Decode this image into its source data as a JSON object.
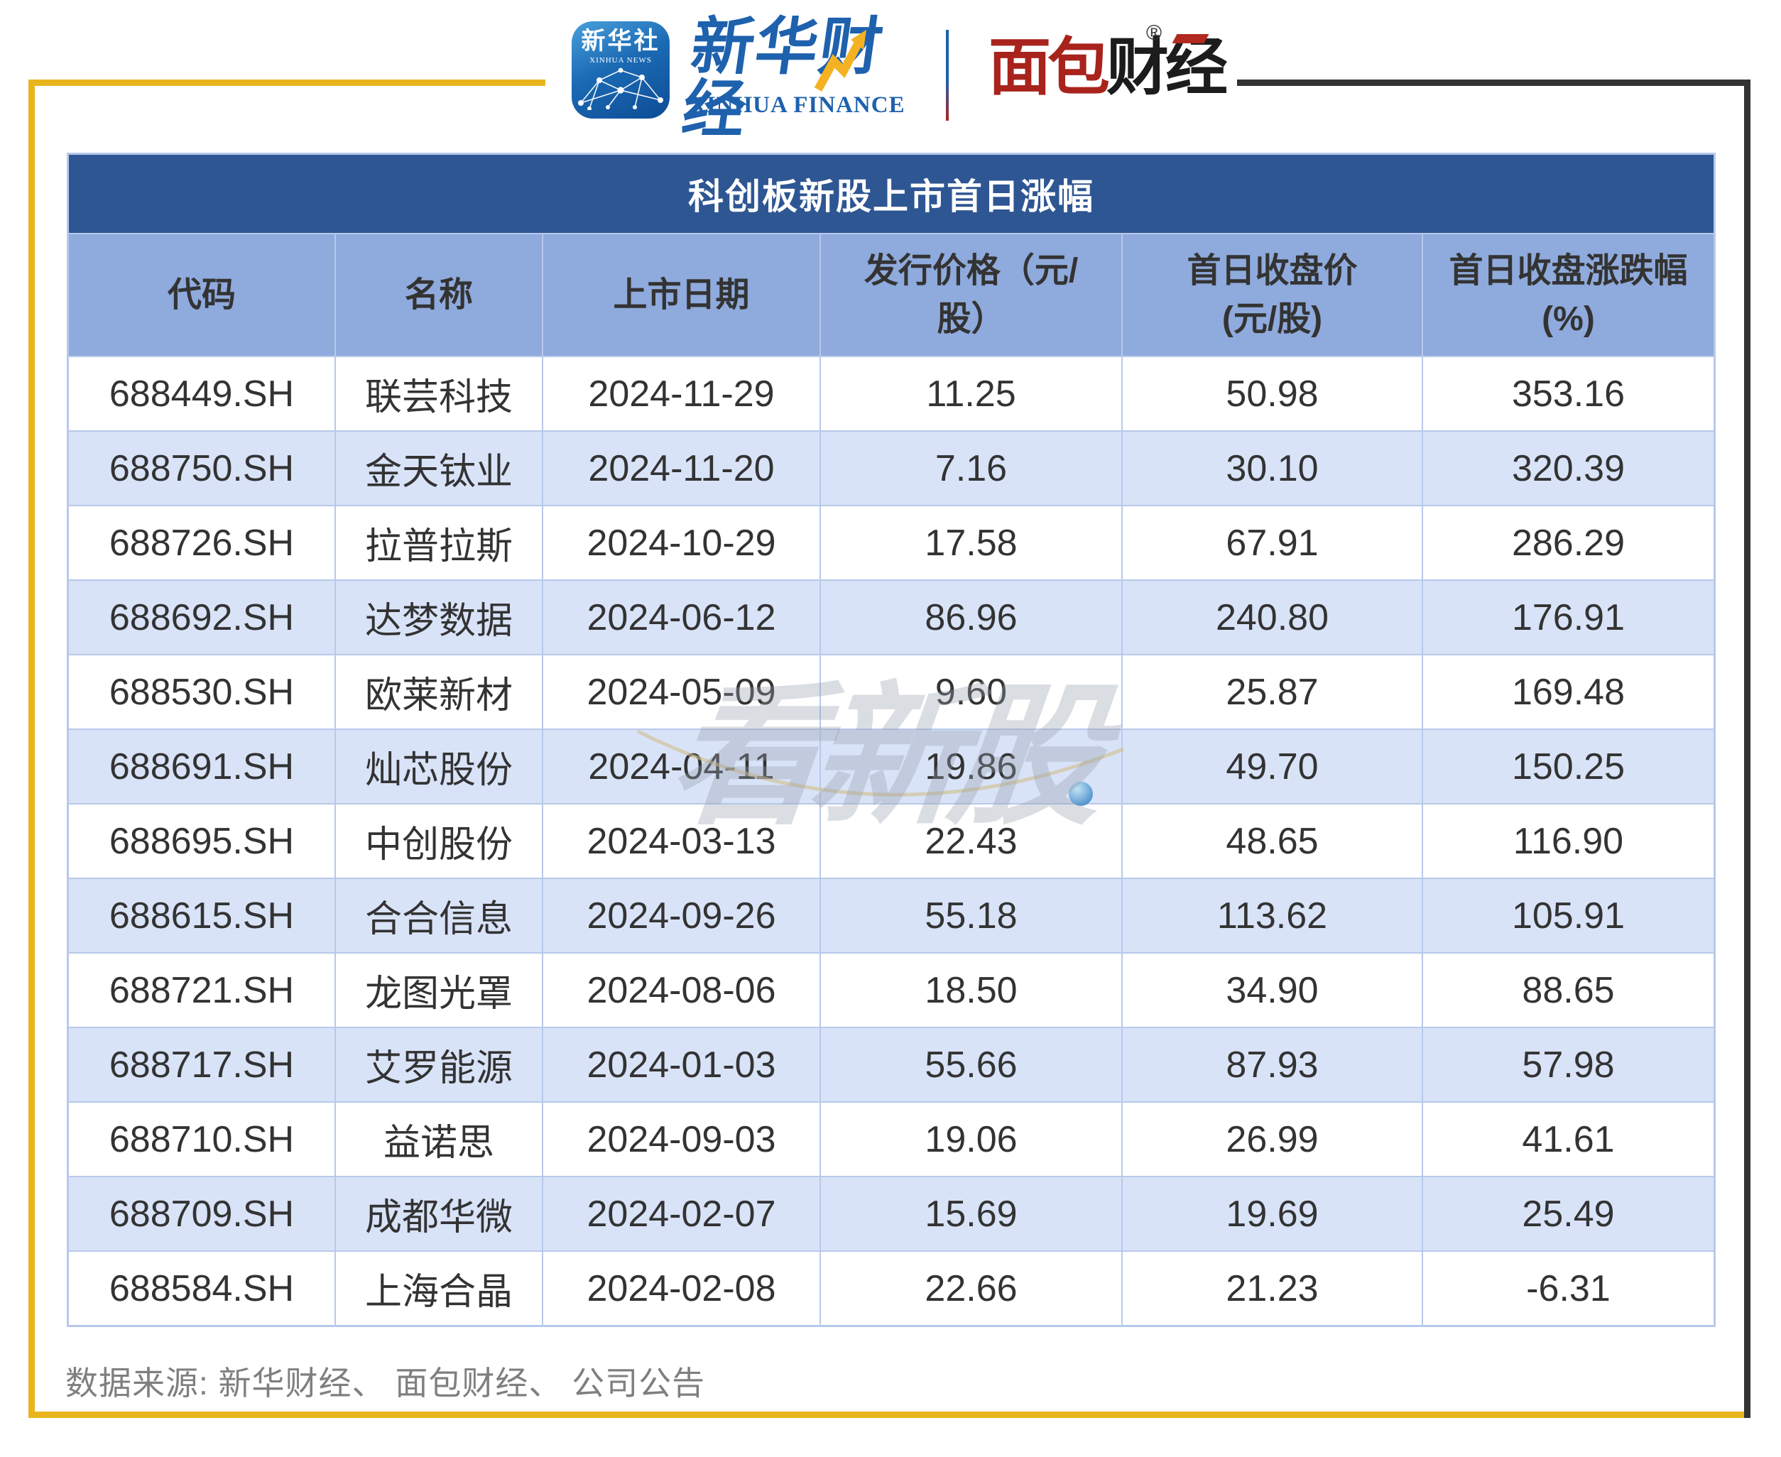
{
  "header": {
    "xinhua_tile": {
      "cn": "新华社",
      "en": "XINHUA NEWS"
    },
    "xinhua_finance": {
      "cn": "新华财经",
      "en": "XINHUA FINANCE"
    },
    "mianbao": {
      "red": "面包",
      "black": "财经",
      "reg": "®"
    }
  },
  "table": {
    "title": "科创板新股上市首日涨幅",
    "columns": [
      {
        "l1": "代码",
        "l2": ""
      },
      {
        "l1": "名称",
        "l2": ""
      },
      {
        "l1": "上市日期",
        "l2": ""
      },
      {
        "l1": "发行价格（元/",
        "l2": "股）"
      },
      {
        "l1": "首日收盘价",
        "l2": "(元/股)"
      },
      {
        "l1": "首日收盘涨跌幅",
        "l2": "(%)"
      }
    ],
    "rows": [
      [
        "688449.SH",
        "联芸科技",
        "2024-11-29",
        "11.25",
        "50.98",
        "353.16"
      ],
      [
        "688750.SH",
        "金天钛业",
        "2024-11-20",
        "7.16",
        "30.10",
        "320.39"
      ],
      [
        "688726.SH",
        "拉普拉斯",
        "2024-10-29",
        "17.58",
        "67.91",
        "286.29"
      ],
      [
        "688692.SH",
        "达梦数据",
        "2024-06-12",
        "86.96",
        "240.80",
        "176.91"
      ],
      [
        "688530.SH",
        "欧莱新材",
        "2024-05-09",
        "9.60",
        "25.87",
        "169.48"
      ],
      [
        "688691.SH",
        "灿芯股份",
        "2024-04-11",
        "19.86",
        "49.70",
        "150.25"
      ],
      [
        "688695.SH",
        "中创股份",
        "2024-03-13",
        "22.43",
        "48.65",
        "116.90"
      ],
      [
        "688615.SH",
        "合合信息",
        "2024-09-26",
        "55.18",
        "113.62",
        "105.91"
      ],
      [
        "688721.SH",
        "龙图光罩",
        "2024-08-06",
        "18.50",
        "34.90",
        "88.65"
      ],
      [
        "688717.SH",
        "艾罗能源",
        "2024-01-03",
        "55.66",
        "87.93",
        "57.98"
      ],
      [
        "688710.SH",
        "益诺思",
        "2024-09-03",
        "19.06",
        "26.99",
        "41.61"
      ],
      [
        "688709.SH",
        "成都华微",
        "2024-02-07",
        "15.69",
        "19.69",
        "25.49"
      ],
      [
        "688584.SH",
        "上海合晶",
        "2024-02-08",
        "22.66",
        "21.23",
        "-6.31"
      ]
    ]
  },
  "chart_data": {
    "type": "table",
    "title": "科创板新股上市首日涨幅",
    "columns": [
      "代码",
      "名称",
      "上市日期",
      "发行价格（元/股）",
      "首日收盘价(元/股)",
      "首日收盘涨跌幅(%)"
    ],
    "rows": [
      [
        "688449.SH",
        "联芸科技",
        "2024-11-29",
        11.25,
        50.98,
        353.16
      ],
      [
        "688750.SH",
        "金天钛业",
        "2024-11-20",
        7.16,
        30.1,
        320.39
      ],
      [
        "688726.SH",
        "拉普拉斯",
        "2024-10-29",
        17.58,
        67.91,
        286.29
      ],
      [
        "688692.SH",
        "达梦数据",
        "2024-06-12",
        86.96,
        240.8,
        176.91
      ],
      [
        "688530.SH",
        "欧莱新材",
        "2024-05-09",
        9.6,
        25.87,
        169.48
      ],
      [
        "688691.SH",
        "灿芯股份",
        "2024-04-11",
        19.86,
        49.7,
        150.25
      ],
      [
        "688695.SH",
        "中创股份",
        "2024-03-13",
        22.43,
        48.65,
        116.9
      ],
      [
        "688615.SH",
        "合合信息",
        "2024-09-26",
        55.18,
        113.62,
        105.91
      ],
      [
        "688721.SH",
        "龙图光罩",
        "2024-08-06",
        18.5,
        34.9,
        88.65
      ],
      [
        "688717.SH",
        "艾罗能源",
        "2024-01-03",
        55.66,
        87.93,
        57.98
      ],
      [
        "688710.SH",
        "益诺思",
        "2024-09-03",
        19.06,
        26.99,
        41.61
      ],
      [
        "688709.SH",
        "成都华微",
        "2024-02-07",
        15.69,
        19.69,
        25.49
      ],
      [
        "688584.SH",
        "上海合晶",
        "2024-02-08",
        22.66,
        21.23,
        -6.31
      ]
    ]
  },
  "watermark": {
    "text": "看新股"
  },
  "footer": {
    "source": "数据来源: 新华财经、 面包财经、 公司公告"
  },
  "colors": {
    "title_bar": "#2E5693",
    "header_row": "#8FAADC",
    "alt_row": "#D9E3F8",
    "grid_border": "#B7C9EA",
    "frame_yellow": "#E9B51E",
    "frame_dark": "#333333",
    "logo_blue": "#1E61AD",
    "logo_red": "#A8231C",
    "body_text": "#333333",
    "footer_text": "#7F7F7F"
  }
}
